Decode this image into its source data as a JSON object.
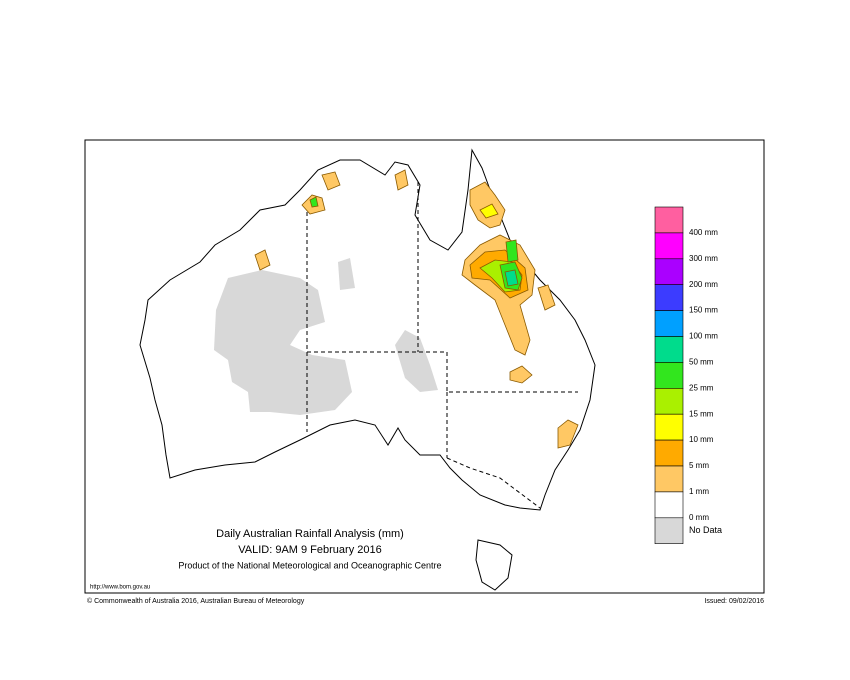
{
  "map": {
    "title": "Daily Australian Rainfall Analysis (mm)",
    "valid": "VALID: 9AM  9 February 2016",
    "product": "Product of the National Meteorological and Oceanographic Centre",
    "url": "http://www.bom.gov.au",
    "copyright": "© Commonwealth of Australia 2016, Australian Bureau of Meteorology",
    "issued": "Issued: 09/02/2016",
    "legend": {
      "colors": [
        "#ff5fa0",
        "#ff00ff",
        "#aa00ff",
        "#3c3cff",
        "#00a0ff",
        "#00dc8c",
        "#32e61e",
        "#aaf000",
        "#ffff00",
        "#ffaa00",
        "#ffc864",
        "#ffffff",
        "#d8d8d8"
      ],
      "labels": [
        "400 mm",
        "300 mm",
        "200 mm",
        "150 mm",
        "100 mm",
        "50 mm",
        "25 mm",
        "15 mm",
        "10 mm",
        "5 mm",
        "1 mm",
        "0 mm",
        "No Data"
      ]
    }
  }
}
